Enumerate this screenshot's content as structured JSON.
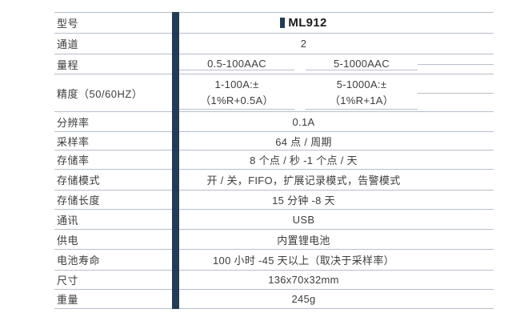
{
  "table": {
    "title_hint": "ML912 产品规格表",
    "colors": {
      "accent_bar": "#223c58",
      "sub_divider": "#b2b2ba",
      "line": "#b7bfc9",
      "text": "#3d3d3d"
    },
    "icons": {
      "model_bullet": "square-bullet-icon"
    },
    "rows": [
      {
        "label": "型号",
        "value": "ML912"
      },
      {
        "label": "通道",
        "value": "2"
      },
      {
        "label": "量程",
        "left": "0.5-100AAC",
        "right": "5-1000AAC"
      },
      {
        "label": "精度（50/60HZ）",
        "left_line1": "1-100A:±",
        "left_line2": "（1%R+0.5A）",
        "right_line1": "5-1000A:±",
        "right_line2": "（1%R+1A）"
      },
      {
        "label": "分辨率",
        "value": "0.1A"
      },
      {
        "label": "采样率",
        "value": "64 点 / 周期"
      },
      {
        "label": "存储率",
        "value": "8 个点 / 秒 -1 个点 / 天"
      },
      {
        "label": "存储模式",
        "value": "开 / 关，FIFO，扩展记录模式，告警模式"
      },
      {
        "label": "存储长度",
        "value": "15 分钟 -8 天"
      },
      {
        "label": "通讯",
        "value": "USB"
      },
      {
        "label": "供电",
        "value": "内置锂电池"
      },
      {
        "label": "电池寿命",
        "value": "100 小时 -45 天以上（取决于采样率）"
      },
      {
        "label": "尺寸",
        "value": "136x70x32mm"
      },
      {
        "label": "重量",
        "value": "245g"
      }
    ]
  }
}
